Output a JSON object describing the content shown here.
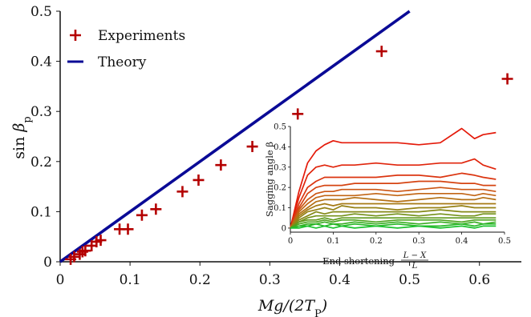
{
  "chart_data": [
    {
      "type": "scatter",
      "xlabel": "Mg/(2T_P)",
      "ylabel": "sin β_p",
      "xlim": [
        0,
        0.66
      ],
      "ylim": [
        0,
        0.5
      ],
      "x_ticks": [
        "0",
        "0.1",
        "0.2",
        "0.3",
        "0.4",
        "0.5",
        "0.6"
      ],
      "y_ticks": [
        "0",
        "0.1",
        "0.2",
        "0.3",
        "0.4",
        "0.5"
      ],
      "legend": {
        "placement": "top-left",
        "entries": [
          {
            "label": "Experiments",
            "marker": "plus",
            "color": "#b40000"
          },
          {
            "label": "Theory",
            "marker": "line",
            "color": "#0a0a96"
          }
        ]
      },
      "series": [
        {
          "name": "Experiments",
          "kind": "scatter",
          "color": "#b40000",
          "points": [
            [
              0.015,
              0.005
            ],
            [
              0.02,
              0.01
            ],
            [
              0.028,
              0.015
            ],
            [
              0.032,
              0.02
            ],
            [
              0.036,
              0.022
            ],
            [
              0.045,
              0.032
            ],
            [
              0.052,
              0.04
            ],
            [
              0.058,
              0.043
            ],
            [
              0.085,
              0.065
            ],
            [
              0.097,
              0.065
            ],
            [
              0.117,
              0.093
            ],
            [
              0.137,
              0.105
            ],
            [
              0.175,
              0.14
            ],
            [
              0.198,
              0.163
            ],
            [
              0.23,
              0.193
            ],
            [
              0.275,
              0.23
            ],
            [
              0.34,
              0.295
            ],
            [
              0.46,
              0.42
            ],
            [
              0.64,
              0.365
            ]
          ]
        },
        {
          "name": "Theory",
          "kind": "line",
          "color": "#0a0a96",
          "points": [
            [
              0,
              0
            ],
            [
              0.5,
              0.5
            ]
          ]
        }
      ]
    },
    {
      "type": "line",
      "role": "inset",
      "xlabel": "End shortening",
      "xlabel_fraction": {
        "numerator": "L − X",
        "denominator": "L"
      },
      "ylabel": "Sagging angle β",
      "xlim": [
        0,
        0.5
      ],
      "ylim": [
        -0.02,
        0.5
      ],
      "x_ticks": [
        "0",
        "0.1",
        "0.2",
        "0.3",
        "0.4",
        "0.5"
      ],
      "y_ticks": [
        "0",
        "0.1",
        "0.2",
        "0.3",
        "0.4",
        "0.5"
      ],
      "grid": false,
      "legend": "none",
      "x": [
        0,
        0.02,
        0.04,
        0.06,
        0.08,
        0.1,
        0.12,
        0.15,
        0.2,
        0.25,
        0.3,
        0.35,
        0.4,
        0.43,
        0.45,
        0.48
      ],
      "series": [
        {
          "color": "#e41a0a",
          "values": [
            0.0,
            0.18,
            0.32,
            0.38,
            0.41,
            0.43,
            0.42,
            0.42,
            0.42,
            0.42,
            0.41,
            0.42,
            0.49,
            0.44,
            0.46,
            0.47
          ]
        },
        {
          "color": "#e0250c",
          "values": [
            0.0,
            0.15,
            0.26,
            0.3,
            0.31,
            0.3,
            0.31,
            0.31,
            0.32,
            0.31,
            0.31,
            0.32,
            0.32,
            0.34,
            0.31,
            0.29
          ]
        },
        {
          "color": "#db3510",
          "values": [
            0.0,
            0.12,
            0.2,
            0.23,
            0.25,
            0.25,
            0.25,
            0.25,
            0.25,
            0.26,
            0.26,
            0.25,
            0.27,
            0.26,
            0.25,
            0.24
          ]
        },
        {
          "color": "#d54412",
          "values": [
            0.0,
            0.1,
            0.17,
            0.2,
            0.21,
            0.21,
            0.21,
            0.22,
            0.22,
            0.22,
            0.23,
            0.23,
            0.22,
            0.22,
            0.21,
            0.21
          ]
        },
        {
          "color": "#cc5614",
          "values": [
            0.0,
            0.09,
            0.14,
            0.17,
            0.18,
            0.18,
            0.19,
            0.19,
            0.19,
            0.18,
            0.19,
            0.2,
            0.19,
            0.19,
            0.19,
            0.18
          ]
        },
        {
          "color": "#c26616",
          "values": [
            0.0,
            0.08,
            0.12,
            0.15,
            0.16,
            0.16,
            0.16,
            0.16,
            0.17,
            0.16,
            0.17,
            0.17,
            0.17,
            0.16,
            0.17,
            0.16
          ]
        },
        {
          "color": "#b47014",
          "values": [
            0.0,
            0.07,
            0.1,
            0.13,
            0.14,
            0.14,
            0.14,
            0.15,
            0.14,
            0.13,
            0.14,
            0.15,
            0.14,
            0.14,
            0.15,
            0.14
          ]
        },
        {
          "color": "#a67a14",
          "values": [
            0.0,
            0.06,
            0.09,
            0.11,
            0.12,
            0.11,
            0.12,
            0.12,
            0.12,
            0.12,
            0.12,
            0.12,
            0.12,
            0.12,
            0.12,
            0.12
          ]
        },
        {
          "color": "#968216",
          "values": [
            0.0,
            0.05,
            0.08,
            0.09,
            0.1,
            0.09,
            0.11,
            0.1,
            0.1,
            0.09,
            0.1,
            0.1,
            0.11,
            0.1,
            0.1,
            0.1
          ]
        },
        {
          "color": "#858a18",
          "values": [
            0.0,
            0.04,
            0.06,
            0.08,
            0.07,
            0.08,
            0.08,
            0.08,
            0.08,
            0.08,
            0.08,
            0.09,
            0.08,
            0.08,
            0.08,
            0.08
          ]
        },
        {
          "color": "#74921a",
          "values": [
            0.0,
            0.03,
            0.05,
            0.06,
            0.06,
            0.06,
            0.06,
            0.07,
            0.06,
            0.07,
            0.06,
            0.07,
            0.06,
            0.06,
            0.07,
            0.07
          ]
        },
        {
          "color": "#609a1c",
          "values": [
            0.0,
            0.03,
            0.04,
            0.04,
            0.05,
            0.04,
            0.05,
            0.05,
            0.05,
            0.05,
            0.05,
            0.05,
            0.05,
            0.05,
            0.05,
            0.05
          ]
        },
        {
          "color": "#4ca41e",
          "values": [
            0.0,
            0.02,
            0.03,
            0.03,
            0.04,
            0.03,
            0.04,
            0.04,
            0.03,
            0.04,
            0.04,
            0.04,
            0.03,
            0.04,
            0.04,
            0.04
          ]
        },
        {
          "color": "#38ae22",
          "values": [
            0.0,
            0.01,
            0.02,
            0.02,
            0.03,
            0.02,
            0.02,
            0.03,
            0.02,
            0.03,
            0.02,
            0.03,
            0.02,
            0.03,
            0.02,
            0.03
          ]
        },
        {
          "color": "#28b828",
          "values": [
            0.0,
            0.01,
            0.01,
            0.02,
            0.01,
            0.02,
            0.01,
            0.02,
            0.01,
            0.02,
            0.01,
            0.01,
            0.02,
            0.01,
            0.02,
            0.02
          ]
        },
        {
          "color": "#1cc22e",
          "values": [
            0.0,
            0.0,
            0.01,
            0.0,
            0.01,
            0.0,
            0.01,
            0.0,
            0.01,
            0.0,
            0.01,
            0.0,
            0.01,
            0.0,
            0.01,
            0.01
          ]
        }
      ]
    }
  ]
}
